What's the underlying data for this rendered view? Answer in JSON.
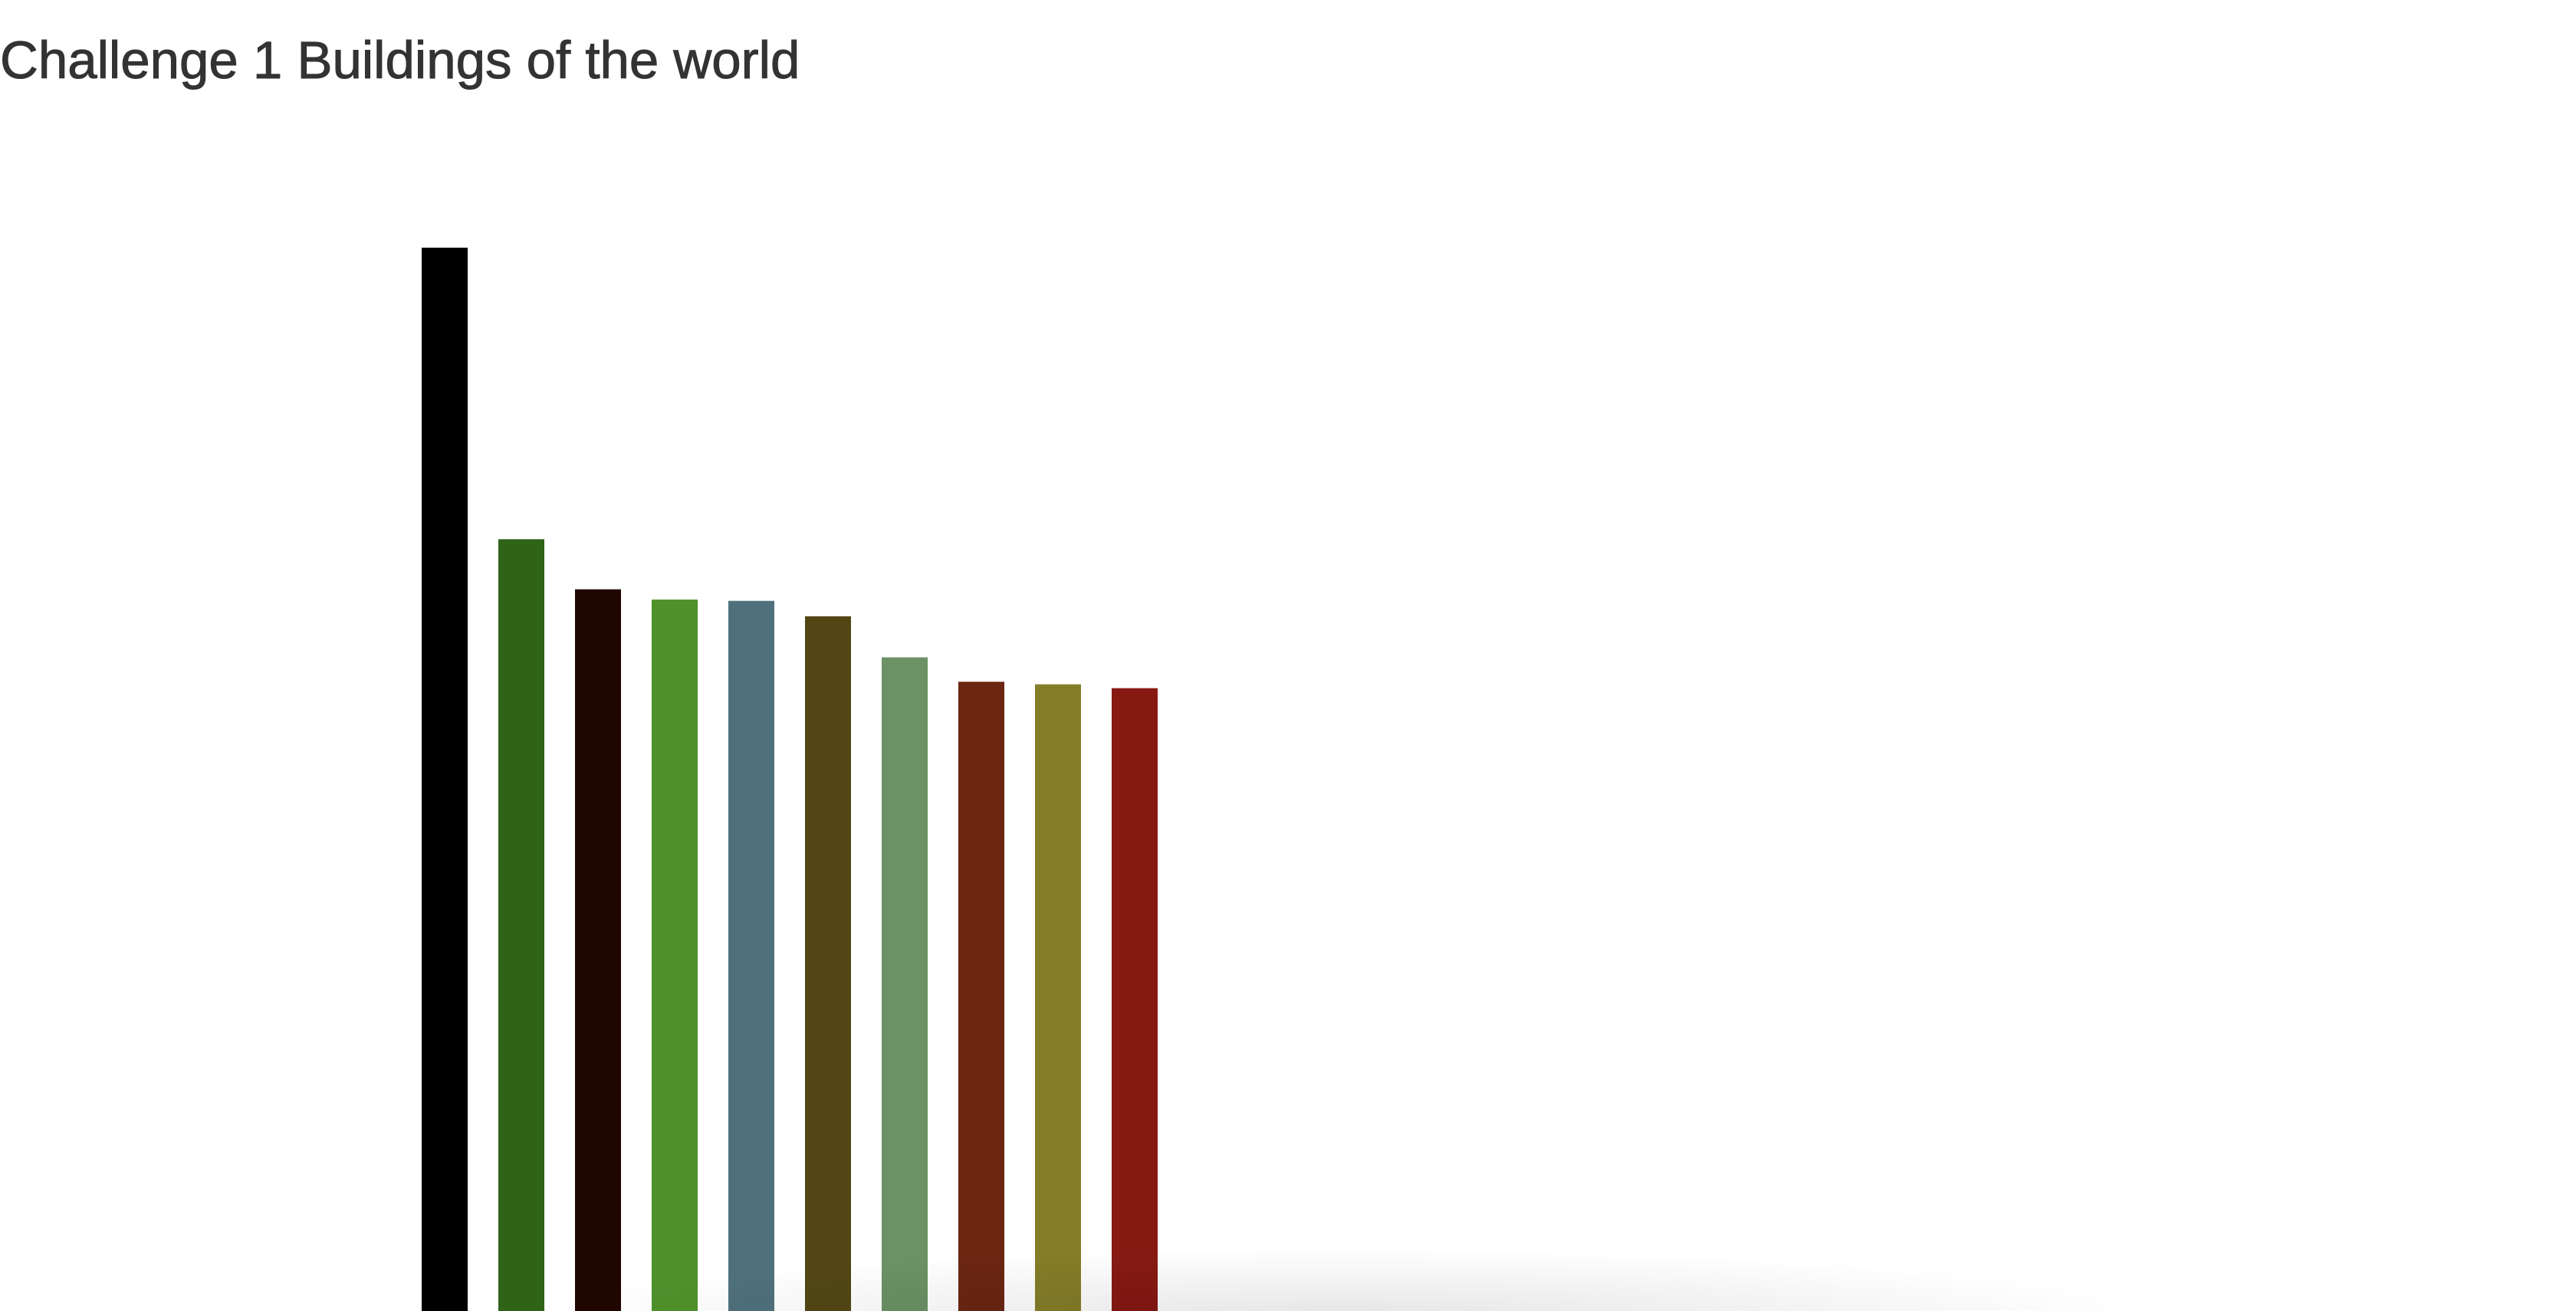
{
  "page": {
    "title": "Challenge 1 Buildings of the world"
  },
  "chart_data": {
    "type": "bar",
    "title": "",
    "xlabel": "",
    "ylabel": "",
    "ylim": [
      0,
      1000
    ],
    "categories": [
      "",
      "",
      "",
      "",
      "",
      "",
      "",
      "",
      "",
      ""
    ],
    "values": [
      828,
      601,
      562,
      554,
      553,
      541,
      509,
      490,
      488,
      485
    ],
    "colors": [
      "#000000",
      "#2e6318",
      "#200600",
      "#4f912b",
      "#4f717c",
      "#524714",
      "#6b9164",
      "#6b2612",
      "#847e29",
      "#871913"
    ],
    "grid": false,
    "legend": "none"
  }
}
